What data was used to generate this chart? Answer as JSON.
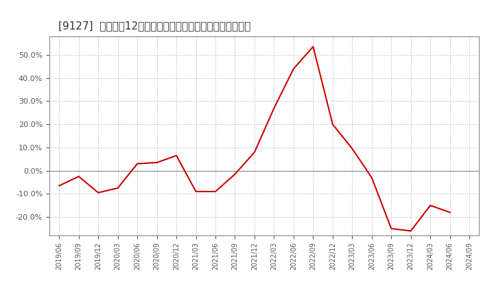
{
  "title": "[9127]  売上高の12か月移動合計の対前年同期増減率の推移",
  "line_color": "#cc0000",
  "bg_color": "#ffffff",
  "plot_bg_color": "#ffffff",
  "grid_color": "#aaaaaa",
  "dates": [
    "2019/06",
    "2019/09",
    "2019/12",
    "2020/03",
    "2020/06",
    "2020/09",
    "2020/12",
    "2021/03",
    "2021/06",
    "2021/09",
    "2021/12",
    "2022/03",
    "2022/06",
    "2022/09",
    "2022/12",
    "2023/03",
    "2023/06",
    "2023/09",
    "2023/12",
    "2024/03",
    "2024/06",
    "2024/09"
  ],
  "values": [
    -6.5,
    -2.5,
    -9.5,
    -7.5,
    3.0,
    3.5,
    6.5,
    -9.0,
    -9.0,
    -1.5,
    8.0,
    27.0,
    44.0,
    53.5,
    20.0,
    9.5,
    -3.0,
    -25.0,
    -26.0,
    -15.0,
    -18.0,
    null
  ],
  "yticks": [
    -20.0,
    -10.0,
    0.0,
    10.0,
    20.0,
    30.0,
    40.0,
    50.0
  ],
  "ylim": [
    -28,
    58
  ],
  "title_fontsize": 11
}
